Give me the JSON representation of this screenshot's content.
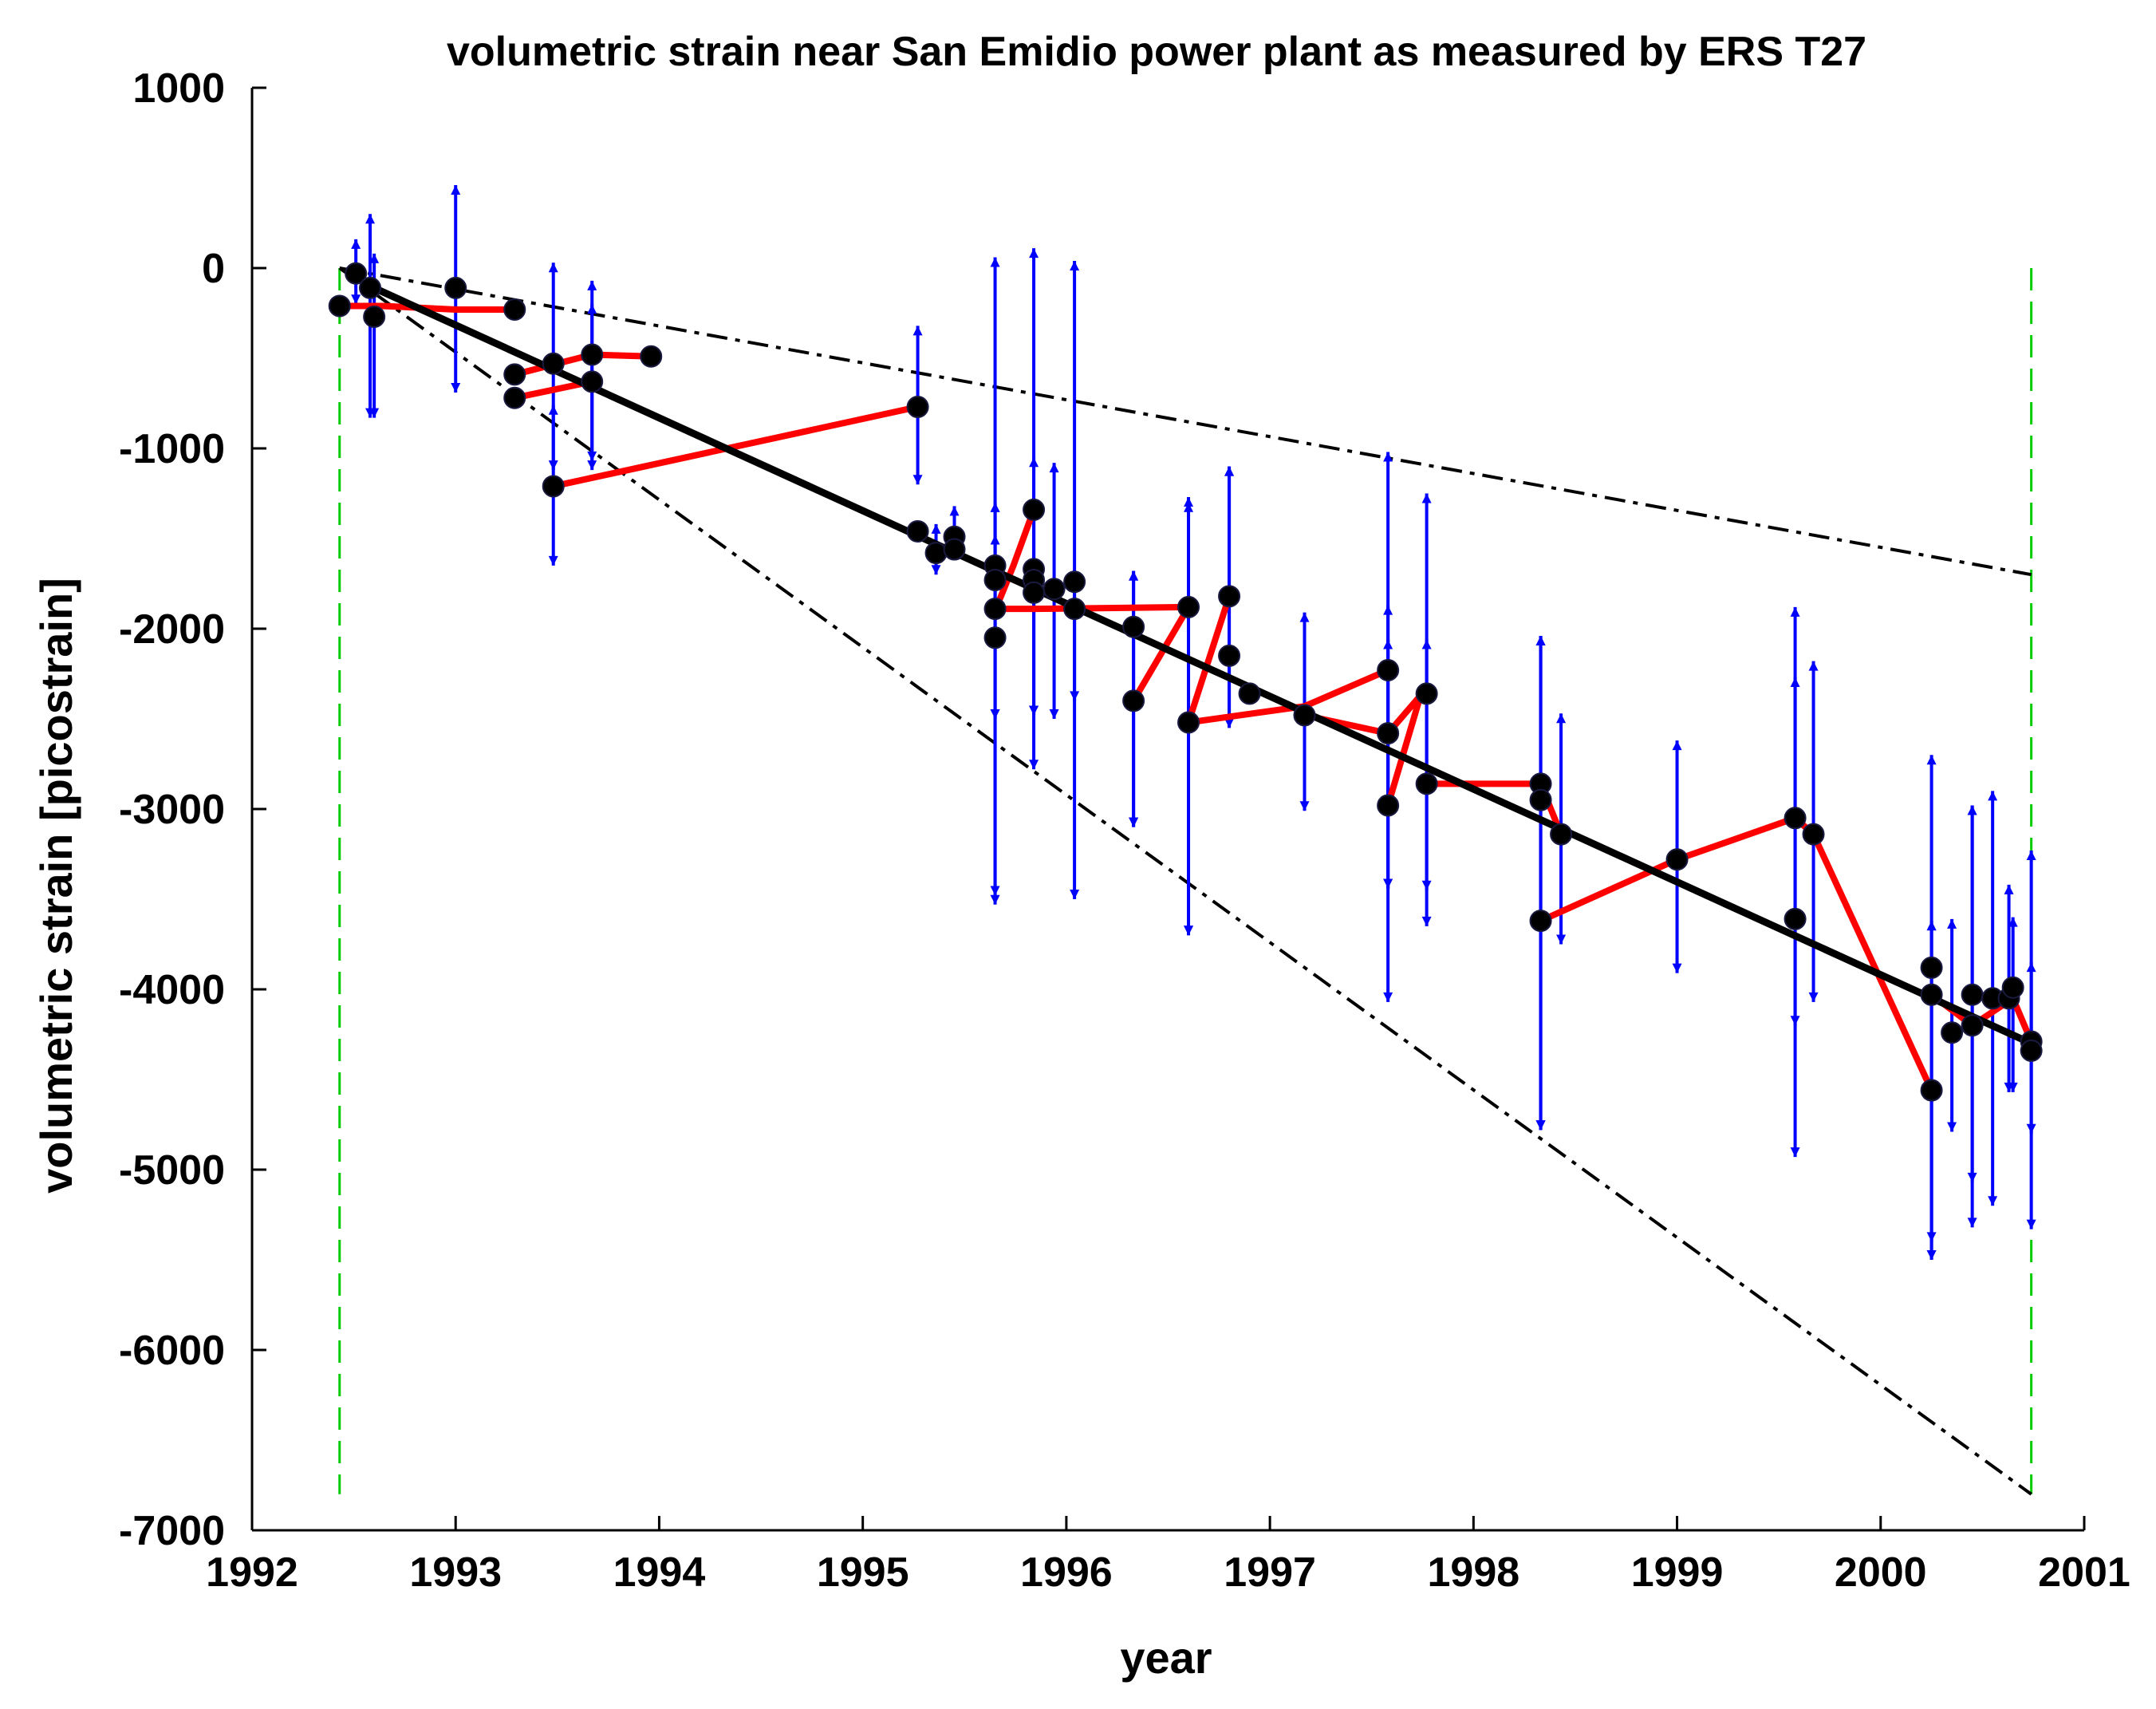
{
  "chart_data": {
    "type": "scatter",
    "title": "volumetric strain near San Emidio power plant as measured by ERS T27",
    "xlabel": "year",
    "ylabel": "volumetric strain [picostrain]",
    "xlim": [
      1992,
      2001
    ],
    "ylim": [
      -7000,
      1000
    ],
    "xticks": [
      1992,
      1993,
      1994,
      1995,
      1996,
      1997,
      1998,
      1999,
      2000,
      2001
    ],
    "yticks": [
      1000,
      0,
      -1000,
      -2000,
      -3000,
      -4000,
      -5000,
      -6000,
      -7000
    ],
    "series": [
      {
        "name": "connected pair measurements",
        "style": "red-line",
        "color": "#ff0000",
        "segments": [
          [
            [
              1992.43,
              -210
            ],
            [
              1992.64,
              -210
            ]
          ],
          [
            [
              1992.64,
              -210
            ],
            [
              1993.0,
              -230
            ]
          ],
          [
            [
              1993.0,
              -230
            ],
            [
              1993.29,
              -230
            ]
          ],
          [
            [
              1993.29,
              -590
            ],
            [
              1993.67,
              -480
            ]
          ],
          [
            [
              1993.67,
              -480
            ],
            [
              1993.96,
              -490
            ]
          ],
          [
            [
              1993.29,
              -720
            ],
            [
              1993.67,
              -630
            ]
          ],
          [
            [
              1993.48,
              -1210
            ],
            [
              1995.27,
              -770
            ]
          ],
          [
            [
              1995.65,
              -1890
            ],
            [
              1995.85,
              -1890
            ]
          ],
          [
            [
              1995.85,
              -1890
            ],
            [
              1996.6,
              -1880
            ]
          ],
          [
            [
              1995.65,
              -1900
            ],
            [
              1995.74,
              -1650
            ]
          ],
          [
            [
              1995.74,
              -1650
            ],
            [
              1995.84,
              -1340
            ]
          ],
          [
            [
              1996.33,
              -2400
            ],
            [
              1996.6,
              -1880
            ]
          ],
          [
            [
              1996.6,
              -2520
            ],
            [
              1997.17,
              -2430
            ]
          ],
          [
            [
              1997.17,
              -2430
            ],
            [
              1997.58,
              -2230
            ]
          ],
          [
            [
              1996.6,
              -2520
            ],
            [
              1996.8,
              -1820
            ]
          ],
          [
            [
              1997.17,
              -2480
            ],
            [
              1997.58,
              -2580
            ]
          ],
          [
            [
              1997.58,
              -2580
            ],
            [
              1997.74,
              -2370
            ]
          ],
          [
            [
              1997.58,
              -2980
            ],
            [
              1997.74,
              -2370
            ]
          ],
          [
            [
              1997.77,
              -2860
            ],
            [
              1998.33,
              -2860
            ]
          ],
          [
            [
              1998.33,
              -2860
            ],
            [
              1998.43,
              -3140
            ]
          ],
          [
            [
              1998.33,
              -3620
            ],
            [
              1999.0,
              -3280
            ]
          ],
          [
            [
              1999.0,
              -3280
            ],
            [
              1999.58,
              -3050
            ]
          ],
          [
            [
              1999.58,
              -3050
            ],
            [
              1999.67,
              -3140
            ]
          ],
          [
            [
              1999.67,
              -3140
            ],
            [
              2000.25,
              -4560
            ]
          ],
          [
            [
              2000.25,
              -4030
            ],
            [
              2000.45,
              -4200
            ]
          ],
          [
            [
              2000.45,
              -4200
            ],
            [
              2000.65,
              -4050
            ]
          ],
          [
            [
              2000.65,
              -4050
            ],
            [
              2000.74,
              -4290
            ]
          ]
        ]
      },
      {
        "name": "measurements",
        "style": "points-with-error-bars",
        "color": "#000000",
        "errorbar_color": "#0000ff",
        "points": [
          {
            "x": 1992.43,
            "y": -210,
            "lo": -210,
            "hi": -210
          },
          {
            "x": 1992.51,
            "y": -30,
            "lo": -200,
            "hi": 160
          },
          {
            "x": 1992.58,
            "y": -110,
            "lo": -830,
            "hi": 300
          },
          {
            "x": 1992.6,
            "y": -270,
            "lo": -830,
            "hi": 80
          },
          {
            "x": 1993.0,
            "y": -110,
            "lo": -690,
            "hi": 460
          },
          {
            "x": 1993.29,
            "y": -230,
            "lo": -230,
            "hi": -230
          },
          {
            "x": 1993.29,
            "y": -590,
            "lo": -590,
            "hi": -590
          },
          {
            "x": 1993.29,
            "y": -720,
            "lo": -720,
            "hi": -720
          },
          {
            "x": 1993.48,
            "y": -530,
            "lo": -1120,
            "hi": 30
          },
          {
            "x": 1993.48,
            "y": -1210,
            "lo": -1650,
            "hi": -760
          },
          {
            "x": 1993.67,
            "y": -480,
            "lo": -1070,
            "hi": -70
          },
          {
            "x": 1993.67,
            "y": -630,
            "lo": -1120,
            "hi": -200
          },
          {
            "x": 1993.96,
            "y": -490,
            "lo": -490,
            "hi": -490
          },
          {
            "x": 1995.27,
            "y": -770,
            "lo": -1200,
            "hi": -320
          },
          {
            "x": 1995.27,
            "y": -1460,
            "lo": -1460,
            "hi": -1460
          },
          {
            "x": 1995.36,
            "y": -1580,
            "lo": -1700,
            "hi": -1420
          },
          {
            "x": 1995.45,
            "y": -1490,
            "lo": -1620,
            "hi": -1320
          },
          {
            "x": 1995.45,
            "y": -1560,
            "lo": -1620,
            "hi": -1450
          },
          {
            "x": 1995.65,
            "y": -1650,
            "lo": -3480,
            "hi": 60
          },
          {
            "x": 1995.65,
            "y": -1730,
            "lo": -3530,
            "hi": -1300
          },
          {
            "x": 1995.65,
            "y": -1890,
            "lo": -2500,
            "hi": -1300
          },
          {
            "x": 1995.65,
            "y": -2050,
            "lo": -2500,
            "hi": -1480
          },
          {
            "x": 1995.84,
            "y": -1340,
            "lo": -2780,
            "hi": 110
          },
          {
            "x": 1995.84,
            "y": -1670,
            "lo": -2480,
            "hi": -1050
          },
          {
            "x": 1995.84,
            "y": -1730,
            "lo": -2480,
            "hi": -1300
          },
          {
            "x": 1995.84,
            "y": -1800,
            "lo": -2480,
            "hi": -1300
          },
          {
            "x": 1995.94,
            "y": -1780,
            "lo": -2500,
            "hi": -1080
          },
          {
            "x": 1996.04,
            "y": -1740,
            "lo": -3500,
            "hi": 40
          },
          {
            "x": 1996.04,
            "y": -1890,
            "lo": -2400,
            "hi": -1680
          },
          {
            "x": 1996.33,
            "y": -1990,
            "lo": -3100,
            "hi": -1680
          },
          {
            "x": 1996.33,
            "y": -2400,
            "lo": -3100,
            "hi": -1680
          },
          {
            "x": 1996.6,
            "y": -1880,
            "lo": -3700,
            "hi": -1270
          },
          {
            "x": 1996.6,
            "y": -2520,
            "lo": -3700,
            "hi": -1300
          },
          {
            "x": 1996.8,
            "y": -1820,
            "lo": -2550,
            "hi": -1100
          },
          {
            "x": 1996.8,
            "y": -2150,
            "lo": -2550,
            "hi": -1100
          },
          {
            "x": 1996.9,
            "y": -2360,
            "lo": -2360,
            "hi": -2360
          },
          {
            "x": 1997.17,
            "y": -2480,
            "lo": -3010,
            "hi": -1910
          },
          {
            "x": 1997.58,
            "y": -2230,
            "lo": -4070,
            "hi": -1020
          },
          {
            "x": 1997.58,
            "y": -2580,
            "lo": -3440,
            "hi": -1870
          },
          {
            "x": 1997.58,
            "y": -2980,
            "lo": -3440,
            "hi": -2060
          },
          {
            "x": 1997.77,
            "y": -2360,
            "lo": -3650,
            "hi": -1250
          },
          {
            "x": 1997.77,
            "y": -2860,
            "lo": -3450,
            "hi": -2060
          },
          {
            "x": 1998.33,
            "y": -2860,
            "lo": -4780,
            "hi": -2040
          },
          {
            "x": 1998.33,
            "y": -2950,
            "lo": -4780,
            "hi": -2040
          },
          {
            "x": 1998.33,
            "y": -3620,
            "lo": -4780,
            "hi": -2040
          },
          {
            "x": 1998.43,
            "y": -3140,
            "lo": -3750,
            "hi": -2470
          },
          {
            "x": 1999.0,
            "y": -3280,
            "lo": -3910,
            "hi": -2620
          },
          {
            "x": 1999.58,
            "y": -3050,
            "lo": -4930,
            "hi": -1880
          },
          {
            "x": 1999.58,
            "y": -3610,
            "lo": -4200,
            "hi": -2270
          },
          {
            "x": 1999.67,
            "y": -3140,
            "lo": -4070,
            "hi": -2180
          },
          {
            "x": 2000.25,
            "y": -3880,
            "lo": -5500,
            "hi": -2700
          },
          {
            "x": 2000.25,
            "y": -4030,
            "lo": -5400,
            "hi": -3620
          },
          {
            "x": 2000.25,
            "y": -4560,
            "lo": -5500,
            "hi": -3620
          },
          {
            "x": 2000.35,
            "y": -4240,
            "lo": -4790,
            "hi": -3610
          },
          {
            "x": 2000.45,
            "y": -4030,
            "lo": -5320,
            "hi": -2980
          },
          {
            "x": 2000.45,
            "y": -4200,
            "lo": -5070,
            "hi": -2980
          },
          {
            "x": 2000.55,
            "y": -4050,
            "lo": -5200,
            "hi": -2900
          },
          {
            "x": 2000.63,
            "y": -4050,
            "lo": -4570,
            "hi": -3420
          },
          {
            "x": 2000.65,
            "y": -3990,
            "lo": -4570,
            "hi": -3600
          },
          {
            "x": 2000.74,
            "y": -4290,
            "lo": -5330,
            "hi": -3230
          },
          {
            "x": 2000.74,
            "y": -4340,
            "lo": -4800,
            "hi": -3850
          }
        ]
      },
      {
        "name": "best fit",
        "style": "black-solid",
        "color": "#000000",
        "x": [
          1992.58,
          2000.74
        ],
        "y": [
          -100,
          -4300
        ]
      },
      {
        "name": "upper bound",
        "style": "black-dashdot",
        "color": "#000000",
        "x": [
          1992.43,
          2000.74
        ],
        "y": [
          0,
          -1700
        ]
      },
      {
        "name": "lower bound",
        "style": "black-dashdot",
        "color": "#000000",
        "x": [
          1992.43,
          2000.74
        ],
        "y": [
          0,
          -6800
        ]
      },
      {
        "name": "time span start",
        "style": "green-dashed",
        "color": "#00cc00",
        "x": [
          1992.43,
          1992.43
        ],
        "y": [
          0,
          -6800
        ]
      },
      {
        "name": "time span end",
        "style": "green-dashed",
        "color": "#00cc00",
        "x": [
          2000.74,
          2000.74
        ],
        "y": [
          0,
          -6800
        ]
      }
    ]
  }
}
